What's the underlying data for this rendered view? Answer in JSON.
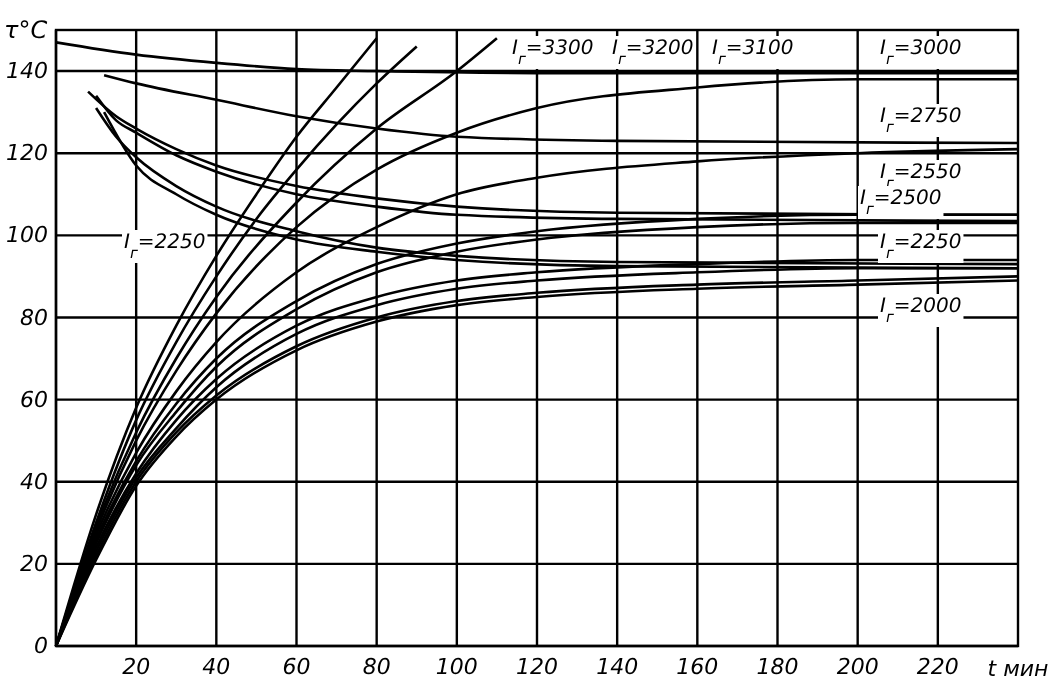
{
  "chart_data": {
    "type": "line",
    "xlabel": "t мин",
    "ylabel": "τ°C",
    "xlim": [
      0,
      240
    ],
    "ylim": [
      0,
      150
    ],
    "xticks": [
      {
        "value": 0,
        "label": null
      },
      20,
      40,
      60,
      80,
      100,
      120,
      140,
      160,
      180,
      200,
      220
    ],
    "yticks": [
      0,
      20,
      40,
      60,
      80,
      100,
      120,
      140
    ],
    "grid": true,
    "line_style": "solid",
    "series": [
      {
        "color": "#000000",
        "x": [
          0,
          10,
          20,
          30,
          40,
          50,
          60,
          70,
          80
        ],
        "values": [
          0,
          32,
          58,
          78,
          95,
          110,
          124,
          136,
          148
        ]
      },
      {
        "color": "#000000",
        "x": [
          0,
          10,
          20,
          30,
          40,
          50,
          60,
          70,
          80,
          90
        ],
        "values": [
          0,
          30,
          55,
          74,
          90,
          104,
          116,
          127,
          137,
          146
        ]
      },
      {
        "color": "#000000",
        "x": [
          0,
          10,
          20,
          30,
          40,
          60,
          80,
          100,
          110
        ],
        "values": [
          0,
          29,
          52,
          70,
          85,
          108,
          126,
          140,
          148
        ]
      },
      {
        "color": "#000000",
        "x": [
          0,
          10,
          20,
          30,
          40,
          60,
          80,
          100,
          120,
          160,
          200,
          240
        ],
        "values": [
          0,
          28,
          50,
          67,
          81,
          102,
          116,
          125,
          131,
          136,
          138,
          138
        ]
      },
      {
        "color": "#000000",
        "x": [
          0,
          10,
          20,
          30,
          40,
          60,
          80,
          100,
          120,
          160,
          200,
          240
        ],
        "values": [
          0,
          27,
          47,
          62,
          74,
          91,
          102,
          110,
          114,
          118,
          120,
          121
        ]
      },
      {
        "color": "#000000",
        "x": [
          0,
          10,
          20,
          30,
          40,
          60,
          80,
          100,
          120,
          160,
          200,
          240
        ],
        "values": [
          0,
          26,
          45,
          59,
          70,
          84,
          93,
          98,
          101,
          104,
          105,
          105
        ]
      },
      {
        "color": "#000000",
        "x": [
          0,
          10,
          20,
          30,
          40,
          60,
          80,
          100,
          120,
          160,
          200,
          240
        ],
        "values": [
          0,
          25,
          44,
          57,
          68,
          82,
          91,
          96,
          99,
          102,
          103,
          103
        ]
      },
      {
        "color": "#000000",
        "x": [
          0,
          10,
          20,
          30,
          40,
          60,
          80,
          100,
          120,
          160,
          200,
          240
        ],
        "values": [
          0,
          24,
          42,
          55,
          65,
          78,
          85,
          89,
          91,
          93,
          94,
          94
        ]
      },
      {
        "color": "#000000",
        "x": [
          0,
          10,
          20,
          30,
          40,
          60,
          80,
          100,
          120,
          160,
          200,
          240
        ],
        "values": [
          0,
          23,
          41,
          53,
          63,
          76,
          83,
          87,
          89,
          91,
          92,
          92
        ]
      },
      {
        "color": "#000000",
        "x": [
          0,
          10,
          20,
          30,
          40,
          60,
          80,
          100,
          120,
          160,
          200,
          240
        ],
        "values": [
          0,
          22,
          40,
          52,
          61,
          73,
          80,
          84,
          86,
          88,
          89,
          90
        ]
      },
      {
        "color": "#000000",
        "x": [
          0,
          10,
          20,
          30,
          40,
          60,
          80,
          100,
          120,
          160,
          200,
          240
        ],
        "values": [
          0,
          21,
          39,
          51,
          60,
          72,
          79,
          83,
          85,
          87,
          88,
          89
        ]
      },
      {
        "color": "#000000",
        "x": [
          0,
          20,
          40,
          60,
          80,
          120,
          240
        ],
        "values": [
          147,
          144,
          142,
          140.5,
          140,
          139.5,
          139.5
        ]
      },
      {
        "color": "#000000",
        "x": [
          12,
          20,
          40,
          60,
          80,
          100,
          140,
          240
        ],
        "values": [
          139,
          137,
          133,
          129,
          126,
          124,
          123,
          122.5
        ]
      },
      {
        "color": "#000000",
        "x": [
          8,
          15,
          20,
          30,
          40,
          60,
          80,
          100,
          140,
          240
        ],
        "values": [
          135,
          129,
          126,
          121,
          117,
          112,
          109,
          107,
          105.5,
          105
        ]
      },
      {
        "color": "#000000",
        "x": [
          10,
          15,
          20,
          30,
          40,
          60,
          80,
          100,
          140,
          240
        ],
        "values": [
          134,
          128,
          125,
          119.5,
          115.5,
          110,
          107,
          105,
          104,
          103.5
        ]
      },
      {
        "color": "#000000",
        "x": [
          10,
          15,
          20,
          30,
          40,
          60,
          80,
          100,
          140,
          240
        ],
        "values": [
          131,
          124,
          119,
          112,
          107,
          101,
          97,
          95,
          93.5,
          93
        ]
      },
      {
        "color": "#000000",
        "x": [
          12,
          20,
          30,
          40,
          60,
          80,
          100,
          140,
          240
        ],
        "values": [
          130,
          117,
          110,
          105,
          99,
          96,
          94,
          92.5,
          92
        ]
      }
    ],
    "annotations": [
      "I$_{г}$=3300",
      "I$_{г}$=3200",
      "I$_{г}$=3100",
      "I$_{г}$=3000",
      "I$_{г}$=2750",
      "I$_{г}$=2550",
      "I$_{г}$=2500",
      "I$_{г}$=2250",
      "I$_{г}$=2000",
      "I$_{г}$=2250"
    ]
  }
}
